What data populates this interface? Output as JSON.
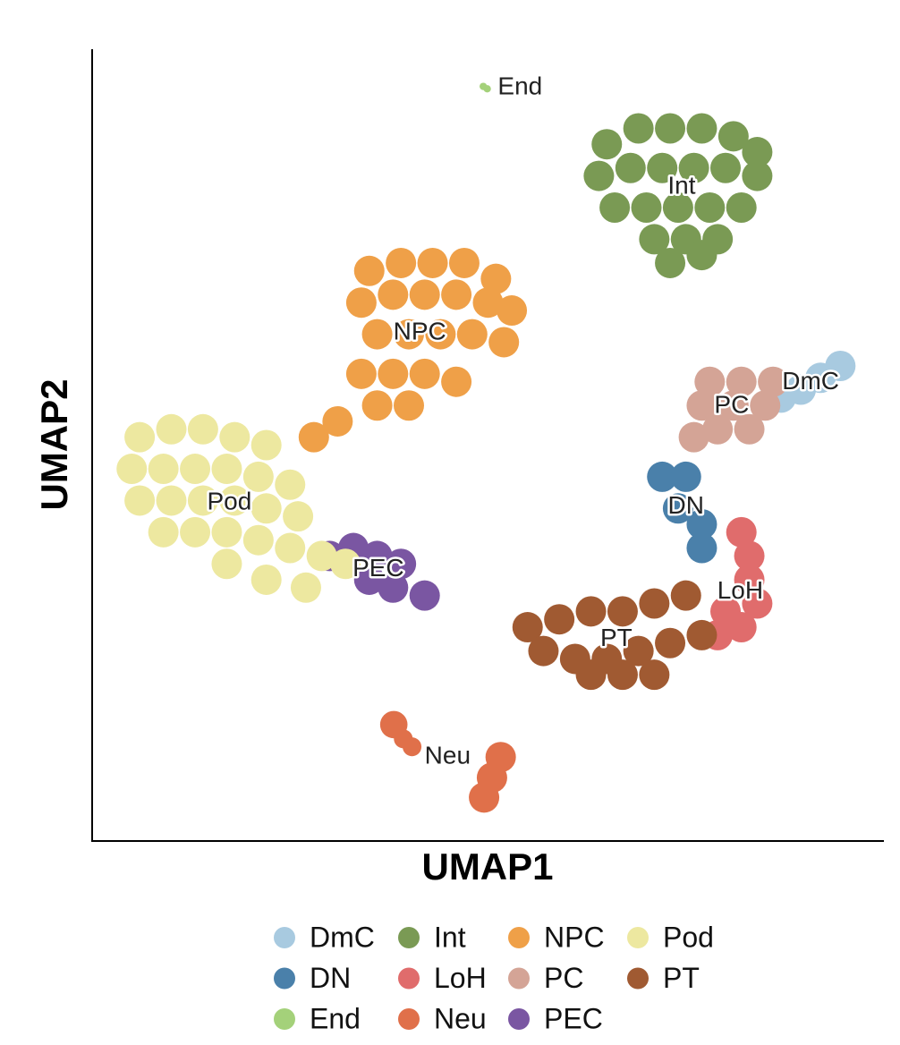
{
  "chart_data": {
    "type": "scatter",
    "x_label": "UMAP1",
    "y_label": "UMAP2",
    "xlim": [
      0,
      100
    ],
    "ylim": [
      0,
      100
    ],
    "series": [
      {
        "name": "DmC",
        "color": "#a8cae0",
        "x": [
          87,
          89.5,
          92,
          94.5
        ],
        "y": [
          56,
          57,
          58.5,
          60
        ]
      },
      {
        "name": "DN",
        "color": "#4a80aa",
        "x": [
          72,
          75,
          74,
          77,
          77
        ],
        "y": [
          46,
          46,
          42,
          40,
          37
        ]
      },
      {
        "name": "End",
        "color": "#a4d17a",
        "x": [
          49.4,
          49.9
        ],
        "y": [
          95.3,
          95.0
        ]
      },
      {
        "name": "Int",
        "color": "#7a9a54",
        "x": [
          65,
          69,
          73,
          77,
          81,
          84,
          64,
          68,
          72,
          76,
          80,
          84,
          66,
          70,
          74,
          78,
          82,
          71,
          75,
          79,
          73,
          77
        ],
        "y": [
          88,
          90,
          90,
          90,
          89,
          87,
          84,
          85,
          85,
          85,
          85,
          84,
          80,
          80,
          80,
          80,
          80,
          76,
          76,
          76,
          73,
          74
        ]
      },
      {
        "name": "LoH",
        "color": "#e06c6c",
        "x": [
          82,
          83,
          83,
          84,
          82,
          79,
          80
        ],
        "y": [
          39,
          36,
          33,
          30,
          27,
          26,
          29
        ]
      },
      {
        "name": "Neu",
        "color": "#e0704a",
        "x": [
          38.1,
          39.3,
          40.4,
          49.5,
          50.5,
          51.6
        ],
        "y": [
          14.7,
          12.9,
          11.9,
          5.5,
          8.0,
          10.6
        ]
      },
      {
        "name": "NPC",
        "color": "#efa048",
        "x": [
          35,
          39,
          43,
          47,
          51,
          34,
          38,
          42,
          46,
          50,
          53,
          36,
          40,
          44,
          48,
          52,
          34,
          38,
          42,
          46,
          36,
          40,
          31,
          28
        ],
        "y": [
          72,
          73,
          73,
          73,
          71,
          68,
          69,
          69,
          69,
          68,
          67,
          64,
          64,
          64,
          64,
          63,
          59,
          59,
          59,
          58,
          55,
          55,
          53,
          51
        ]
      },
      {
        "name": "PC",
        "color": "#d4a496",
        "x": [
          78,
          82,
          86,
          77,
          81,
          85,
          79,
          83,
          76
        ],
        "y": [
          58,
          58,
          58,
          55,
          55,
          55,
          52,
          52,
          51
        ]
      },
      {
        "name": "PEC",
        "color": "#7a56a2",
        "x": [
          30,
          33,
          36,
          39,
          35,
          38,
          42
        ],
        "y": [
          36,
          37,
          36,
          35,
          33,
          32,
          31
        ]
      },
      {
        "name": "Pod",
        "color": "#ede8a0",
        "x": [
          6,
          10,
          14,
          18,
          22,
          5,
          9,
          13,
          17,
          21,
          25,
          6,
          10,
          14,
          18,
          22,
          26,
          9,
          13,
          17,
          21,
          25,
          29,
          32,
          17,
          22,
          27
        ],
        "y": [
          51,
          52,
          52,
          51,
          50,
          47,
          47,
          47,
          47,
          46,
          45,
          43,
          43,
          43,
          43,
          42,
          41,
          39,
          39,
          39,
          38,
          37,
          36,
          35,
          35,
          33,
          32
        ]
      },
      {
        "name": "PT",
        "color": "#a05a32",
        "x": [
          55,
          59,
          63,
          67,
          71,
          75,
          57,
          61,
          65,
          69,
          73,
          77,
          63,
          67,
          71
        ],
        "y": [
          27,
          28,
          29,
          29,
          30,
          31,
          24,
          23,
          23,
          24,
          25,
          26,
          21,
          21,
          21
        ]
      }
    ]
  }
}
